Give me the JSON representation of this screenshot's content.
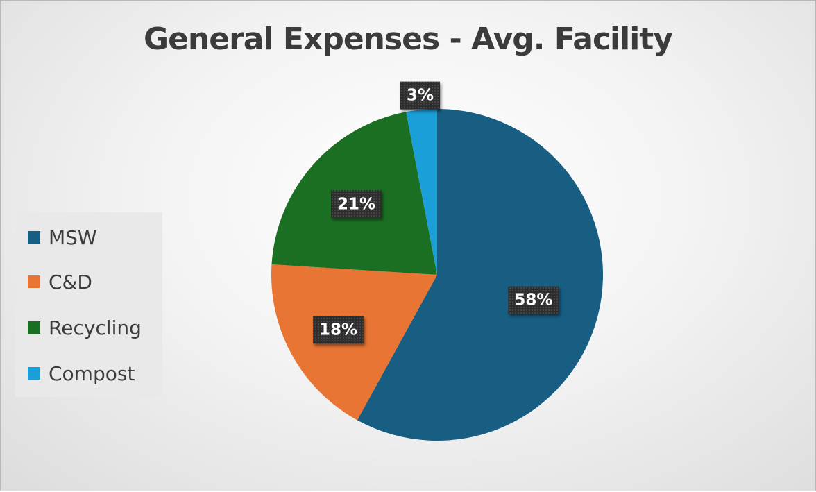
{
  "chart_data": {
    "type": "pie",
    "title": "General Expenses - Avg. Facility",
    "categories": [
      "MSW",
      "C&D",
      "Recycling",
      "Compost"
    ],
    "values": [
      58,
      18,
      21,
      3
    ],
    "data_labels": [
      "58%",
      "18%",
      "21%",
      "3%"
    ],
    "colors": [
      "#175e82",
      "#e87534",
      "#1b6f23",
      "#1a9fd9"
    ],
    "start_angle_deg": 0,
    "direction": "clockwise",
    "legend_position": "left"
  }
}
